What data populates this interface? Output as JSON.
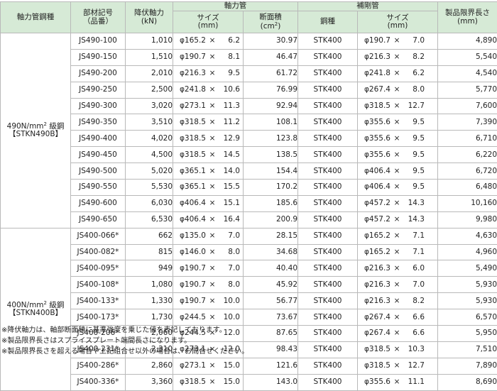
{
  "headers": {
    "grade": "軸力管鋼種",
    "member_no_line1": "部材記号",
    "member_no_line2": "（品番）",
    "yield_axial_line1": "降伏軸力",
    "yield_axial_line2": "(kN)",
    "axial_pipe": "軸力管",
    "size_line1": "サイズ",
    "size_line2": "(mm)",
    "area_line1": "断面積",
    "area_line2_pre": "(cm",
    "area_line2_sup": "2",
    "area_line2_post": ")",
    "reinforce_pipe": "補剛管",
    "steel": "鋼種",
    "rsize_line1": "サイズ",
    "rsize_line2": "(mm)",
    "limit_line1": "製品限界長さ",
    "limit_line2": "(mm)"
  },
  "groups": [
    {
      "grade_line1_pre": "490N/mm",
      "grade_line1_sup": "2",
      "grade_line1_post": " 級鋼",
      "grade_line2": "【STKN490B】",
      "rows": [
        {
          "code": "JS490-100",
          "yield": "1,010",
          "d": "φ165.2",
          "x": "×",
          "t": "6.2",
          "area": "30.97",
          "steel": "STK400",
          "rd": "φ190.7",
          "rx": "×",
          "rt": "7.0",
          "len": "4,890"
        },
        {
          "code": "JS490-150",
          "yield": "1,510",
          "d": "φ190.7",
          "x": "×",
          "t": "8.1",
          "area": "46.47",
          "steel": "STK400",
          "rd": "φ216.3",
          "rx": "×",
          "rt": "8.2",
          "len": "5,540"
        },
        {
          "code": "JS490-200",
          "yield": "2,010",
          "d": "φ216.3",
          "x": "×",
          "t": "9.5",
          "area": "61.72",
          "steel": "STK400",
          "rd": "φ241.8",
          "rx": "×",
          "rt": "6.2",
          "len": "4,540"
        },
        {
          "code": "JS490-250",
          "yield": "2,500",
          "d": "φ241.8",
          "x": "×",
          "t": "10.6",
          "area": "76.99",
          "steel": "STK400",
          "rd": "φ267.4",
          "rx": "×",
          "rt": "8.0",
          "len": "5,770"
        },
        {
          "code": "JS490-300",
          "yield": "3,020",
          "d": "φ273.1",
          "x": "×",
          "t": "11.3",
          "area": "92.94",
          "steel": "STK400",
          "rd": "φ318.5",
          "rx": "×",
          "rt": "12.7",
          "len": "7,600"
        },
        {
          "code": "JS490-350",
          "yield": "3,510",
          "d": "φ318.5",
          "x": "×",
          "t": "11.2",
          "area": "108.1",
          "steel": "STK400",
          "rd": "φ355.6",
          "rx": "×",
          "rt": "9.5",
          "len": "7,390"
        },
        {
          "code": "JS490-400",
          "yield": "4,020",
          "d": "φ318.5",
          "x": "×",
          "t": "12.9",
          "area": "123.8",
          "steel": "STK400",
          "rd": "φ355.6",
          "rx": "×",
          "rt": "9.5",
          "len": "6,710"
        },
        {
          "code": "JS490-450",
          "yield": "4,500",
          "d": "φ318.5",
          "x": "×",
          "t": "14.5",
          "area": "138.5",
          "steel": "STK400",
          "rd": "φ355.6",
          "rx": "×",
          "rt": "9.5",
          "len": "6,220"
        },
        {
          "code": "JS490-500",
          "yield": "5,020",
          "d": "φ365.1",
          "x": "×",
          "t": "14.0",
          "area": "154.4",
          "steel": "STK400",
          "rd": "φ406.4",
          "rx": "×",
          "rt": "9.5",
          "len": "6,720"
        },
        {
          "code": "JS490-550",
          "yield": "5,530",
          "d": "φ365.1",
          "x": "×",
          "t": "15.5",
          "area": "170.2",
          "steel": "STK400",
          "rd": "φ406.4",
          "rx": "×",
          "rt": "9.5",
          "len": "6,480"
        },
        {
          "code": "JS490-600",
          "yield": "6,030",
          "d": "φ406.4",
          "x": "×",
          "t": "15.1",
          "area": "185.6",
          "steel": "STK400",
          "rd": "φ457.2",
          "rx": "×",
          "rt": "14.3",
          "len": "10,160"
        },
        {
          "code": "JS490-650",
          "yield": "6,530",
          "d": "φ406.4",
          "x": "×",
          "t": "16.4",
          "area": "200.9",
          "steel": "STK400",
          "rd": "φ457.2",
          "rx": "×",
          "rt": "14.3",
          "len": "9,980"
        }
      ]
    },
    {
      "grade_line1_pre": "400N/mm",
      "grade_line1_sup": "2",
      "grade_line1_post": " 級鋼",
      "grade_line2": "【STKN400B】",
      "rows": [
        {
          "code": "JS400-066*",
          "yield": "662",
          "d": "φ135.0",
          "x": "×",
          "t": "7.0",
          "area": "28.15",
          "steel": "STK400",
          "rd": "φ165.2",
          "rx": "×",
          "rt": "7.1",
          "len": "4,630"
        },
        {
          "code": "JS400-082*",
          "yield": "815",
          "d": "φ146.0",
          "x": "×",
          "t": "8.0",
          "area": "34.68",
          "steel": "STK400",
          "rd": "φ165.2",
          "rx": "×",
          "rt": "7.1",
          "len": "4,960"
        },
        {
          "code": "JS400-095*",
          "yield": "949",
          "d": "φ190.7",
          "x": "×",
          "t": "7.0",
          "area": "40.40",
          "steel": "STK400",
          "rd": "φ216.3",
          "rx": "×",
          "rt": "6.0",
          "len": "5,490"
        },
        {
          "code": "JS400-108*",
          "yield": "1,080",
          "d": "φ190.7",
          "x": "×",
          "t": "8.0",
          "area": "45.92",
          "steel": "STK400",
          "rd": "φ216.3",
          "rx": "×",
          "rt": "7.0",
          "len": "5,930"
        },
        {
          "code": "JS400-133*",
          "yield": "1,330",
          "d": "φ190.7",
          "x": "×",
          "t": "10.0",
          "area": "56.77",
          "steel": "STK400",
          "rd": "φ216.3",
          "rx": "×",
          "rt": "8.2",
          "len": "5,930"
        },
        {
          "code": "JS400-173*",
          "yield": "1,730",
          "d": "φ244.5",
          "x": "×",
          "t": "10.0",
          "area": "73.67",
          "steel": "STK400",
          "rd": "φ267.4",
          "rx": "×",
          "rt": "6.6",
          "len": "6,570"
        },
        {
          "code": "JS400-206*",
          "yield": "2,060",
          "d": "φ244.5",
          "x": "×",
          "t": "12.0",
          "area": "87.65",
          "steel": "STK400",
          "rd": "φ267.4",
          "rx": "×",
          "rt": "6.6",
          "len": "5,950"
        },
        {
          "code": "JS400-231*",
          "yield": "2,310",
          "d": "φ273.1",
          "x": "×",
          "t": "12.0",
          "area": "98.43",
          "steel": "STK400",
          "rd": "φ318.5",
          "rx": "×",
          "rt": "10.3",
          "len": "7,510"
        },
        {
          "code": "JS400-286*",
          "yield": "2,860",
          "d": "φ273.1",
          "x": "×",
          "t": "15.0",
          "area": "121.6",
          "steel": "STK400",
          "rd": "φ318.5",
          "rx": "×",
          "rt": "12.7",
          "len": "7,890"
        },
        {
          "code": "JS400-336*",
          "yield": "3,360",
          "d": "φ318.5",
          "x": "×",
          "t": "15.0",
          "area": "143.0",
          "steel": "STK400",
          "rd": "φ355.6",
          "rx": "×",
          "rt": "11.1",
          "len": "8,690"
        }
      ]
    }
  ],
  "notes": [
    "※降伏軸力は、軸部断面積に基準強度を乗じた値を表記しております。",
    "※製品限界長さはスプライスプレート端間長さになります。",
    "※製品限界長さを超える場合や上記組合せ以外の場合は、お問合せください。"
  ]
}
